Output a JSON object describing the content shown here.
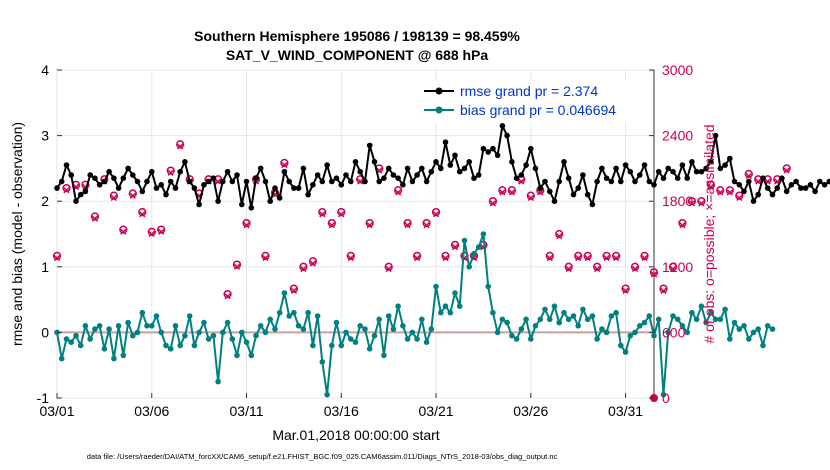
{
  "chart_data": {
    "type": "line",
    "title": "Southern Hemisphere 195086 / 198139 = 98.459%",
    "subtitle": "SAT_V_WIND_COMPONENT @ 688 hPa",
    "xlabel": "Mar.01,2018 00:00:00 start",
    "ylabel": "rmse and bias (model - observation)",
    "ylabel_right": "# of obs: o=possible; ×=assimilated",
    "ylim": [
      -1,
      4
    ],
    "ylim_right": [
      0,
      3000
    ],
    "xlim": [
      0,
      31.5
    ],
    "x_ticks": [
      0,
      5,
      10,
      15,
      20,
      25,
      30
    ],
    "x_tick_labels": [
      "03/01",
      "03/06",
      "03/11",
      "03/16",
      "03/21",
      "03/26",
      "03/31"
    ],
    "y_tick_labels": [
      "-1",
      "0",
      "1",
      "2",
      "3",
      "4"
    ],
    "y_tick_labels_right": [
      "0",
      "600",
      "1200",
      "1800",
      "2400",
      "3000"
    ],
    "zero_line": 0,
    "series": [
      {
        "name": "rmse grand pr = 2.374",
        "color": "#000000",
        "marker": "star",
        "x_step": 0.25,
        "values": [
          2.2,
          2.3,
          2.55,
          2.4,
          2.0,
          2.1,
          2.15,
          2.4,
          2.35,
          2.25,
          2.3,
          2.45,
          2.35,
          2.2,
          2.35,
          2.5,
          2.4,
          2.3,
          2.15,
          2.3,
          2.45,
          2.2,
          2.25,
          2.1,
          2.3,
          2.2,
          2.45,
          2.6,
          2.3,
          2.2,
          1.95,
          2.25,
          2.3,
          2.35,
          2.0,
          2.3,
          2.45,
          2.3,
          2.4,
          1.95,
          2.3,
          1.9,
          2.35,
          2.5,
          2.3,
          2.0,
          2.2,
          2.05,
          2.45,
          2.3,
          2.2,
          2.2,
          2.5,
          2.1,
          2.25,
          2.4,
          2.3,
          2.55,
          2.3,
          2.35,
          2.25,
          2.4,
          2.3,
          2.6,
          2.45,
          2.3,
          2.85,
          2.6,
          2.3,
          2.35,
          2.5,
          2.4,
          2.35,
          2.25,
          2.5,
          2.3,
          2.4,
          2.5,
          2.3,
          2.45,
          2.6,
          2.5,
          2.9,
          2.55,
          2.7,
          2.45,
          2.5,
          2.6,
          2.35,
          2.4,
          2.8,
          2.75,
          2.8,
          2.7,
          3.15,
          3.0,
          2.6,
          2.35,
          2.4,
          2.55,
          2.8,
          2.5,
          2.2,
          2.3,
          2.15,
          2.0,
          2.3,
          2.6,
          2.35,
          2.1,
          2.2,
          2.4,
          2.1,
          1.95,
          2.3,
          2.5,
          2.35,
          2.3,
          2.5,
          2.3,
          2.55,
          2.45,
          2.3,
          2.4,
          2.55,
          2.3,
          2.25,
          2.45,
          2.35,
          2.5,
          2.45,
          2.35,
          2.55,
          2.35,
          2.6,
          2.45,
          2.45,
          2.5,
          2.6,
          3.0,
          2.5,
          2.55,
          2.65,
          2.3,
          2.25,
          2.15,
          2.3,
          2.0,
          2.1,
          2.35,
          2.2,
          2.1,
          2.2,
          2.35,
          2.15,
          2.25,
          2.3,
          2.2,
          2.2,
          2.25,
          2.15,
          2.3,
          2.25,
          2.3,
          2.2,
          2.25,
          2.3,
          2.25
        ]
      },
      {
        "name": "bias grand pr = 0.046694",
        "color": "#008080",
        "marker": "circle",
        "x_step": 0.25,
        "values": [
          0.0,
          -0.4,
          -0.1,
          -0.15,
          -0.05,
          -0.2,
          0.1,
          -0.1,
          0.05,
          0.1,
          -0.25,
          0.05,
          -0.4,
          0.1,
          -0.35,
          0.15,
          -0.05,
          0.0,
          0.3,
          0.1,
          0.1,
          0.25,
          0.0,
          -0.2,
          -0.25,
          0.1,
          -0.2,
          -0.05,
          0.25,
          -0.2,
          0.0,
          0.15,
          -0.1,
          -0.05,
          -0.75,
          0.0,
          0.15,
          -0.1,
          -0.35,
          0.0,
          -0.15,
          -0.35,
          -0.05,
          0.1,
          0.0,
          0.2,
          0.05,
          0.3,
          0.6,
          0.25,
          0.3,
          0.1,
          0.05,
          0.3,
          -0.2,
          0.25,
          -0.45,
          -0.95,
          -0.2,
          0.15,
          -0.2,
          0.0,
          -0.1,
          -0.15,
          0.1,
          0.05,
          -0.25,
          -0.05,
          0.2,
          -0.35,
          0.25,
          0.05,
          0.4,
          0.1,
          -0.1,
          0.0,
          -0.1,
          0.2,
          -0.15,
          0.05,
          0.7,
          0.3,
          0.4,
          0.3,
          0.6,
          0.4,
          1.4,
          1.0,
          1.2,
          1.3,
          1.5,
          0.7,
          0.3,
          0.0,
          0.2,
          0.15,
          -0.05,
          -0.1,
          0.05,
          0.2,
          -0.1,
          0.1,
          0.2,
          0.35,
          0.2,
          0.4,
          0.15,
          0.3,
          0.2,
          0.25,
          0.1,
          0.35,
          0.2,
          0.25,
          -0.1,
          0.05,
          0.0,
          0.25,
          0.3,
          -0.2,
          -0.3,
          -0.05,
          0.0,
          0.1,
          0.15,
          0.25,
          -0.05,
          0.2,
          -0.95,
          0.0,
          0.25,
          0.2,
          0.1,
          0.0,
          0.3,
          0.2,
          0.4,
          0.15,
          0.3,
          0.2,
          0.2,
          0.35,
          -0.1,
          0.15,
          0.05,
          0.1,
          -0.1,
          0.0,
          0.05,
          -0.2,
          0.1,
          0.05
        ]
      },
      {
        "name": "# of obs possible",
        "axis": "right",
        "color": "#cc0055",
        "marker": "circle-outline",
        "x_step": 0.25,
        "values": [
          1300,
          1750,
          1920,
          1350,
          1950,
          1800,
          1950,
          2210,
          1660,
          2100,
          2000,
          1980,
          1850,
          1460,
          1540,
          1220,
          1870,
          1580,
          1700,
          1420,
          1520,
          1100,
          1540,
          1280,
          2080,
          1180,
          2320,
          1950,
          2000,
          2000,
          1870,
          2200,
          2000,
          2000,
          2000,
          1100,
          950,
          1000,
          1220,
          2200,
          1600,
          1500,
          2000,
          1540,
          1300,
          1800,
          1880,
          1500,
          2150,
          1300,
          1000,
          1100,
          1200,
          2050,
          1250,
          1300,
          1700,
          1500,
          1600,
          1550,
          1700,
          1500,
          1300,
          1650,
          2000,
          1200,
          1600,
          1600,
          2100,
          1600,
          1200,
          1300,
          1900,
          1500,
          1600,
          1400,
          1300,
          1500,
          1600,
          1300,
          1700,
          1300,
          1300,
          1300,
          1400,
          1500,
          1300,
          1600,
          1300,
          1500,
          1400,
          1300,
          1800,
          1900,
          1900,
          1600,
          1900,
          2000,
          2000,
          1900,
          1850,
          1600,
          1900,
          2000,
          1300,
          1400,
          1500,
          1300,
          1200,
          1350,
          1300,
          1200,
          1300,
          1300,
          1200,
          1250,
          1300,
          1200,
          1300,
          1100,
          1000,
          1100,
          1200,
          1000,
          1300,
          1250,
          1150,
          1200,
          1000,
          800,
          1200,
          1400,
          1600,
          1500,
          1800,
          2000,
          1800,
          2000,
          1950,
          2100,
          1900,
          2050,
          1900,
          2000,
          1850,
          2100,
          2050,
          1900,
          2000,
          2100,
          2000,
          1900,
          2000,
          1950,
          2100,
          1950
        ]
      },
      {
        "name": "# of obs assimilated",
        "axis": "right",
        "color": "#cc0055",
        "marker": "x",
        "x_step": 0.25,
        "values": [
          1280,
          1730,
          1900,
          1330,
          1930,
          1780,
          1930,
          2190,
          1640,
          2080,
          1980,
          1960,
          1830,
          1440,
          1520,
          1200,
          1850,
          1560,
          1680,
          1400,
          1500,
          1080,
          1520,
          1260,
          2060,
          1160,
          2300,
          1930,
          1980,
          1980,
          1850,
          2180,
          1980,
          1980,
          1980,
          1080,
          930,
          980,
          1200,
          2180,
          1580,
          1480,
          1980,
          1520,
          1280,
          1780,
          1860,
          1480,
          2130,
          1280,
          980,
          1080,
          1180,
          2030,
          1230,
          1280,
          1680,
          1480,
          1580,
          1530,
          1680,
          1480,
          1280,
          1630,
          1980,
          1180,
          1580,
          1580,
          2080,
          1580,
          1180,
          1280,
          1880,
          1480,
          1580,
          1380,
          1280,
          1480,
          1580,
          1280,
          1680,
          1280,
          1280,
          1280,
          1380,
          1480,
          1280,
          1580,
          1280,
          1480,
          1380,
          1280,
          1780,
          1880,
          1880,
          1580,
          1880,
          1980,
          1980,
          1880,
          1830,
          1580,
          1880,
          1980,
          1280,
          1380,
          1480,
          1280,
          1180,
          1330,
          1280,
          1180,
          1280,
          1280,
          1180,
          1230,
          1280,
          1180,
          1280,
          1080,
          980,
          1080,
          1180,
          980,
          1280,
          1230,
          1130,
          1180,
          980,
          780,
          1180,
          1380,
          1580,
          1480,
          1780,
          1980,
          1780,
          1980,
          1930,
          2080,
          1880,
          2030,
          1880,
          1980,
          1830,
          2080,
          2030,
          1880,
          1980,
          2080,
          1980,
          1880,
          1980,
          1930,
          2080,
          1930
        ]
      }
    ],
    "legend": [
      "rmse grand pr = 2.374",
      "bias grand pr = 0.046694"
    ],
    "legend_position": "top-right",
    "footnote": "data file: /Users/raeder/DAI/ATM_forcXX/CAM6_setup/f.e21.FHIST_BGC.f09_025.CAM6assim.011/Diags_NTrS_2018-03/obs_diag_output.nc"
  }
}
